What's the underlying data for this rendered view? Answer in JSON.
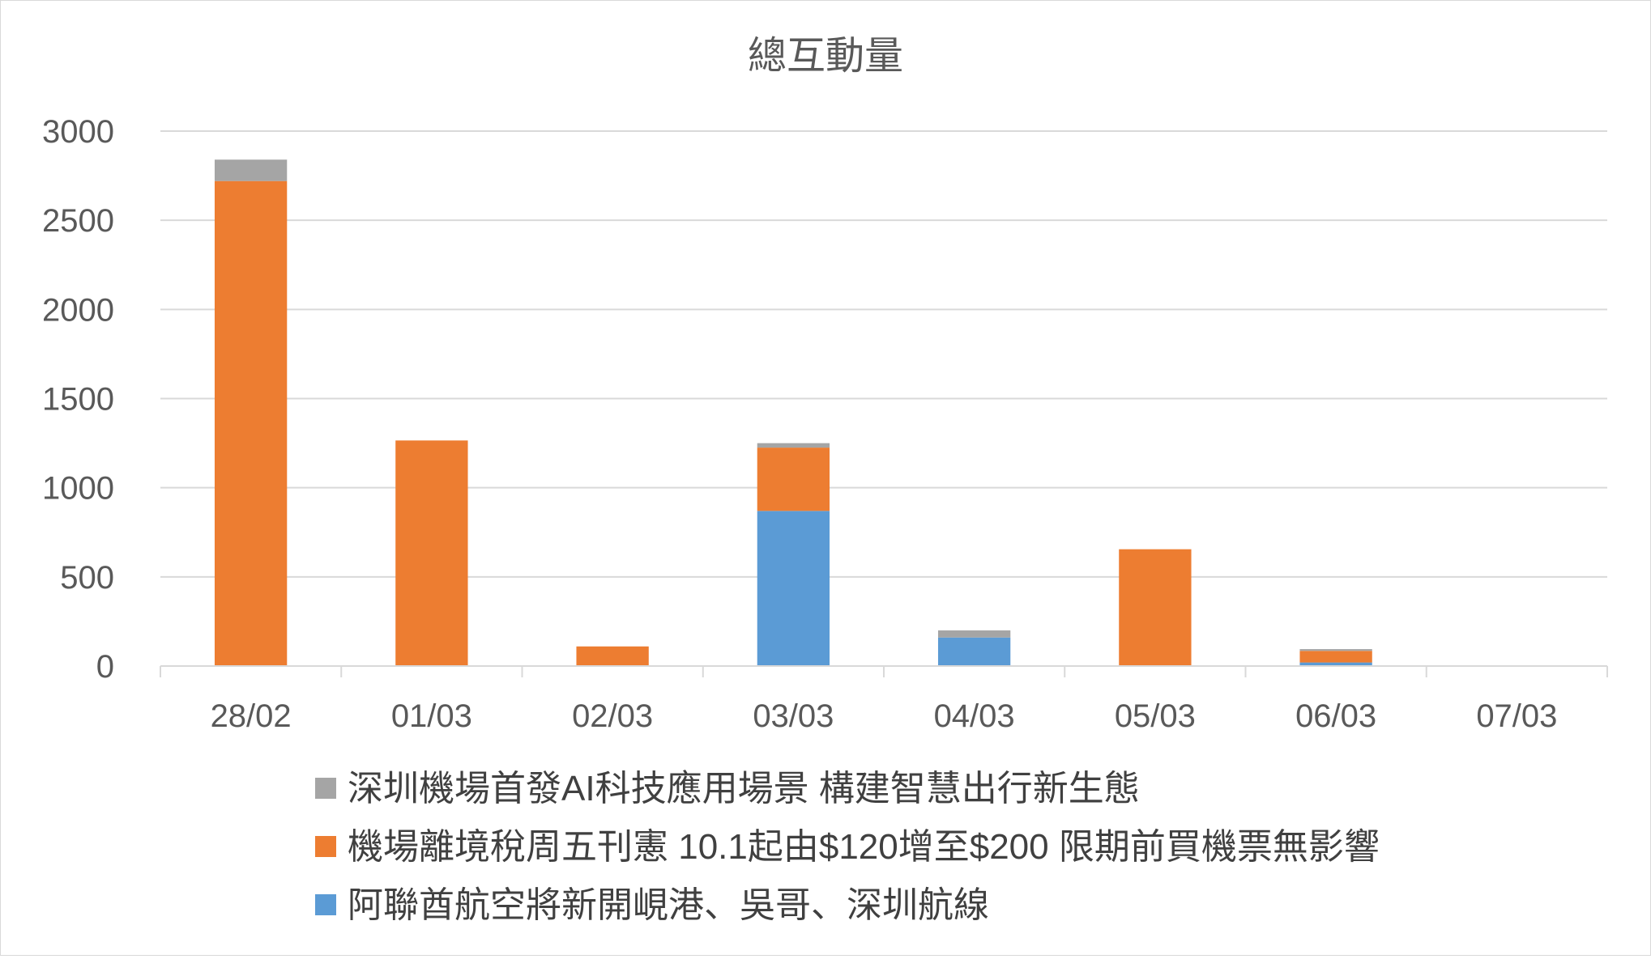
{
  "chart_data": {
    "type": "bar",
    "stacked": true,
    "title": "總互動量",
    "xlabel": "",
    "ylabel": "",
    "categories": [
      "28/02",
      "01/03",
      "02/03",
      "03/03",
      "04/03",
      "05/03",
      "06/03",
      "07/03"
    ],
    "ylim": [
      0,
      3000
    ],
    "yticks": [
      0,
      500,
      1000,
      1500,
      2000,
      2500,
      3000
    ],
    "grid": true,
    "legend_position": "bottom",
    "series": [
      {
        "name": "阿聯酋航空將新開峴港、吳哥、深圳航線",
        "color": "#5b9bd5",
        "values": [
          0,
          0,
          0,
          870,
          160,
          0,
          20,
          0
        ]
      },
      {
        "name": "機場離境稅周五刊憲 10.1起由$120增至$200 限期前買機票無影響",
        "color": "#ed7d31",
        "values": [
          2720,
          1265,
          110,
          355,
          0,
          655,
          65,
          0
        ]
      },
      {
        "name": "深圳機場首發AI科技應用場景 構建智慧出行新生態",
        "color": "#a5a5a5",
        "values": [
          120,
          0,
          0,
          25,
          40,
          0,
          10,
          0
        ]
      }
    ],
    "legend_order": [
      2,
      1,
      0
    ]
  }
}
